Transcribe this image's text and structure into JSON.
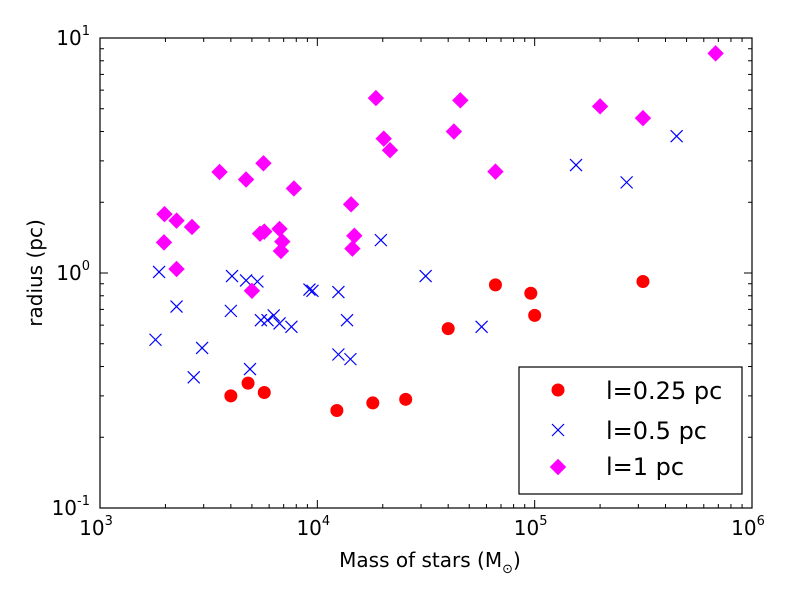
{
  "chart_data": {
    "type": "scatter",
    "xscale": "log",
    "yscale": "log",
    "xlim": [
      1000,
      1000000
    ],
    "ylim": [
      0.1,
      10
    ],
    "xlabel": "Mass of stars (M",
    "xlabel_sub": "⊙",
    "xlabel_close": ")",
    "ylabel": "radius (pc)",
    "x_ticks": [
      {
        "value": 1000,
        "base": "10",
        "exp": "3"
      },
      {
        "value": 10000,
        "base": "10",
        "exp": "4"
      },
      {
        "value": 100000,
        "base": "10",
        "exp": "5"
      },
      {
        "value": 1000000,
        "base": "10",
        "exp": "6"
      }
    ],
    "y_ticks": [
      {
        "value": 0.1,
        "base": "10",
        "exp": "-1"
      },
      {
        "value": 1,
        "base": "10",
        "exp": "0"
      },
      {
        "value": 10,
        "base": "10",
        "exp": "1"
      }
    ],
    "legend_position": "bottom-right",
    "series": [
      {
        "name": "l=0.25 pc",
        "marker": "circle",
        "color": "#ff0000",
        "points": [
          [
            4000,
            0.3
          ],
          [
            4800,
            0.34
          ],
          [
            5700,
            0.31
          ],
          [
            12300,
            0.26
          ],
          [
            18000,
            0.28
          ],
          [
            25500,
            0.29
          ],
          [
            40000,
            0.58
          ],
          [
            66000,
            0.89
          ],
          [
            96000,
            0.82
          ],
          [
            100000,
            0.66
          ],
          [
            315000,
            0.92
          ]
        ]
      },
      {
        "name": "l=0.5 pc",
        "marker": "x",
        "color": "#0000ff",
        "points": [
          [
            1800,
            0.52
          ],
          [
            1870,
            1.01
          ],
          [
            2250,
            0.72
          ],
          [
            2700,
            0.36
          ],
          [
            2950,
            0.48
          ],
          [
            4000,
            0.69
          ],
          [
            4050,
            0.97
          ],
          [
            4700,
            0.93
          ],
          [
            4900,
            0.39
          ],
          [
            5300,
            0.92
          ],
          [
            5500,
            0.63
          ],
          [
            5900,
            0.63
          ],
          [
            6300,
            0.66
          ],
          [
            6700,
            0.61
          ],
          [
            7600,
            0.59
          ],
          [
            9200,
            0.85
          ],
          [
            9500,
            0.84
          ],
          [
            12500,
            0.83
          ],
          [
            12500,
            0.45
          ],
          [
            13700,
            0.63
          ],
          [
            14200,
            0.43
          ],
          [
            19600,
            1.38
          ],
          [
            31500,
            0.97
          ],
          [
            57000,
            0.59
          ],
          [
            155000,
            2.88
          ],
          [
            265000,
            2.43
          ],
          [
            450000,
            3.82
          ]
        ]
      },
      {
        "name": "l=1 pc",
        "marker": "diamond",
        "color": "#ff00ff",
        "points": [
          [
            1980,
            1.78
          ],
          [
            1970,
            1.35
          ],
          [
            2250,
            1.67
          ],
          [
            2250,
            1.04
          ],
          [
            2650,
            1.57
          ],
          [
            3550,
            2.69
          ],
          [
            4700,
            2.5
          ],
          [
            5000,
            0.84
          ],
          [
            5450,
            1.47
          ],
          [
            5700,
            1.5
          ],
          [
            5650,
            2.93
          ],
          [
            6700,
            1.54
          ],
          [
            6800,
            1.24
          ],
          [
            6900,
            1.36
          ],
          [
            7800,
            2.29
          ],
          [
            14300,
            1.96
          ],
          [
            14500,
            1.27
          ],
          [
            14800,
            1.44
          ],
          [
            18600,
            5.55
          ],
          [
            20200,
            3.73
          ],
          [
            21600,
            3.33
          ],
          [
            42500,
            4.0
          ],
          [
            45500,
            5.43
          ],
          [
            66000,
            2.7
          ],
          [
            200000,
            5.12
          ],
          [
            315000,
            4.56
          ],
          [
            680000,
            8.6
          ]
        ]
      }
    ]
  }
}
